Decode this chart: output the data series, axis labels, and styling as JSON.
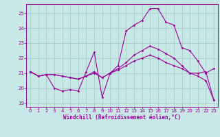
{
  "xlabel": "Windchill (Refroidissement éolien,°C)",
  "bg_color": "#c8e8e8",
  "line_color": "#990099",
  "grid_color": "#aacccc",
  "xlim": [
    -0.5,
    23.5
  ],
  "ylim": [
    18.75,
    25.6
  ],
  "line1_x": [
    0,
    1,
    2,
    3,
    4,
    5,
    6,
    7,
    8,
    9,
    10,
    11,
    12,
    13,
    14,
    15,
    16,
    17,
    18,
    19,
    20,
    21,
    22,
    23
  ],
  "line1_y": [
    21.1,
    20.8,
    20.9,
    20.0,
    19.8,
    19.9,
    19.8,
    21.1,
    22.4,
    19.4,
    21.0,
    21.5,
    23.8,
    24.2,
    24.5,
    25.3,
    25.3,
    24.4,
    24.2,
    22.7,
    22.5,
    21.8,
    21.0,
    21.3
  ],
  "line2_x": [
    0,
    1,
    2,
    3,
    4,
    5,
    6,
    7,
    8,
    9,
    10,
    11,
    12,
    13,
    14,
    15,
    16,
    17,
    18,
    19,
    20,
    21,
    22,
    23
  ],
  "line2_y": [
    21.1,
    20.8,
    20.9,
    20.9,
    20.8,
    20.7,
    20.6,
    20.8,
    21.1,
    20.7,
    21.0,
    21.3,
    21.7,
    22.2,
    22.5,
    22.8,
    22.6,
    22.3,
    22.0,
    21.5,
    21.0,
    20.8,
    20.5,
    19.2
  ],
  "line3_x": [
    0,
    1,
    2,
    3,
    4,
    5,
    6,
    7,
    8,
    9,
    10,
    11,
    12,
    13,
    14,
    15,
    16,
    17,
    18,
    19,
    20,
    21,
    22,
    23
  ],
  "line3_y": [
    21.1,
    20.8,
    20.9,
    20.9,
    20.8,
    20.7,
    20.6,
    20.8,
    21.0,
    20.7,
    21.0,
    21.2,
    21.5,
    21.8,
    22.0,
    22.2,
    22.0,
    21.7,
    21.5,
    21.3,
    21.0,
    21.0,
    21.1,
    19.2
  ],
  "x_ticks": [
    0,
    1,
    2,
    3,
    4,
    5,
    6,
    7,
    8,
    9,
    10,
    11,
    12,
    13,
    14,
    15,
    16,
    17,
    18,
    19,
    20,
    21,
    22,
    23
  ],
  "y_ticks": [
    19,
    20,
    21,
    22,
    23,
    24,
    25
  ],
  "tick_fontsize": 5.0,
  "xlabel_fontsize": 5.5
}
